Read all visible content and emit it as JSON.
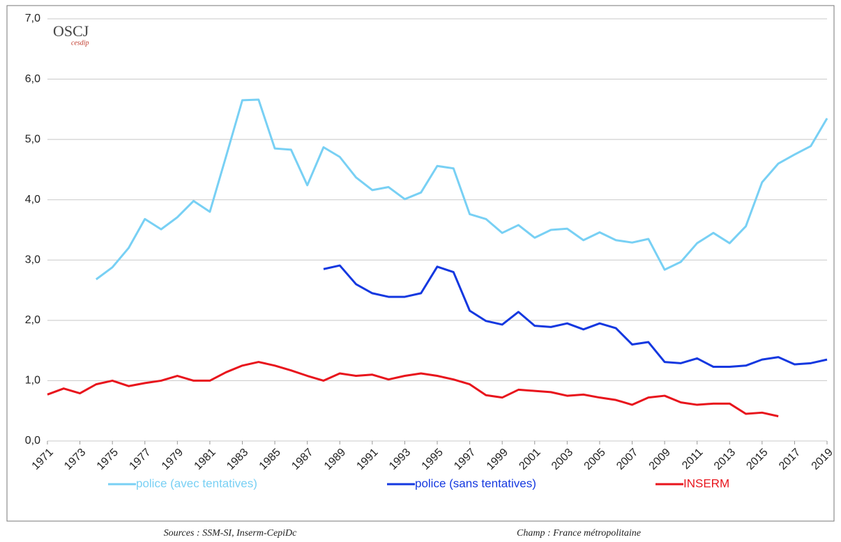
{
  "chart_data": {
    "type": "line",
    "x": [
      1971,
      1972,
      1973,
      1974,
      1975,
      1976,
      1977,
      1978,
      1979,
      1980,
      1981,
      1982,
      1983,
      1984,
      1985,
      1986,
      1987,
      1988,
      1989,
      1990,
      1991,
      1992,
      1993,
      1994,
      1995,
      1996,
      1997,
      1998,
      1999,
      2000,
      2001,
      2002,
      2003,
      2004,
      2005,
      2006,
      2007,
      2008,
      2009,
      2010,
      2011,
      2012,
      2013,
      2014,
      2015,
      2016,
      2017,
      2018,
      2019
    ],
    "series": [
      {
        "name": "police (avec tentatives)",
        "color": "#78d0f4",
        "values": [
          null,
          null,
          null,
          2.68,
          2.88,
          3.2,
          3.68,
          3.51,
          3.71,
          3.98,
          3.8,
          4.72,
          5.65,
          5.66,
          4.85,
          4.83,
          4.24,
          4.87,
          4.71,
          4.37,
          4.16,
          4.21,
          4.01,
          4.12,
          4.56,
          4.52,
          3.76,
          3.68,
          3.45,
          3.58,
          3.37,
          3.5,
          3.52,
          3.33,
          3.46,
          3.33,
          3.29,
          3.35,
          2.84,
          2.97,
          3.28,
          3.45,
          3.28,
          3.56,
          4.29,
          4.6,
          4.75,
          4.89,
          5.35
        ]
      },
      {
        "name": "police (sans tentatives)",
        "color": "#1438e0",
        "values": [
          null,
          null,
          null,
          null,
          null,
          null,
          null,
          null,
          null,
          null,
          null,
          null,
          null,
          null,
          null,
          null,
          null,
          2.85,
          2.91,
          2.6,
          2.45,
          2.39,
          2.39,
          2.45,
          2.89,
          2.8,
          2.16,
          1.99,
          1.93,
          2.14,
          1.91,
          1.89,
          1.95,
          1.85,
          1.95,
          1.87,
          1.6,
          1.64,
          1.31,
          1.29,
          1.37,
          1.23,
          1.23,
          1.25,
          1.35,
          1.39,
          1.27,
          1.29,
          1.35
        ]
      },
      {
        "name": "INSERM",
        "color": "#e8141c",
        "values": [
          0.77,
          0.87,
          0.79,
          0.94,
          1.0,
          0.91,
          0.96,
          1.0,
          1.08,
          1.0,
          1.0,
          1.14,
          1.25,
          1.31,
          1.25,
          1.17,
          1.08,
          1.0,
          1.12,
          1.08,
          1.1,
          1.02,
          1.08,
          1.12,
          1.08,
          1.02,
          0.94,
          0.76,
          0.72,
          0.85,
          0.83,
          0.81,
          0.75,
          0.77,
          0.72,
          0.68,
          0.6,
          0.72,
          0.75,
          0.64,
          0.6,
          0.62,
          0.62,
          0.45,
          0.47,
          0.41,
          null,
          null,
          null
        ]
      }
    ],
    "xlim": [
      1971,
      2019
    ],
    "xticks": [
      1971,
      1973,
      1975,
      1977,
      1979,
      1981,
      1983,
      1985,
      1987,
      1989,
      1991,
      1993,
      1995,
      1997,
      1999,
      2001,
      2003,
      2005,
      2007,
      2009,
      2011,
      2013,
      2015,
      2017,
      2019
    ],
    "ylim": [
      0,
      7
    ],
    "yticks": [
      {
        "value": 0,
        "label": "0,0"
      },
      {
        "value": 1,
        "label": "1,0"
      },
      {
        "value": 2,
        "label": "2,0"
      },
      {
        "value": 3,
        "label": "3,0"
      },
      {
        "value": 4,
        "label": "4,0"
      },
      {
        "value": 5,
        "label": "5,0"
      },
      {
        "value": 6,
        "label": "6,0"
      },
      {
        "value": 7,
        "label": "7,0"
      }
    ],
    "grid": true,
    "logo": {
      "name": "OSCJ",
      "sub": "cesdip"
    },
    "source": "Sources : SSM-SI, Inserm-CepiDc",
    "scope": "Champ : France métropolitaine"
  }
}
